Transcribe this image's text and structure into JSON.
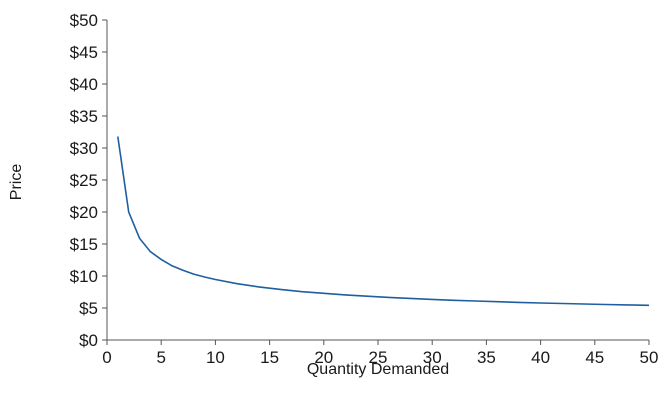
{
  "chart_data": {
    "type": "line",
    "title": "",
    "xlabel": "Quantity Demanded",
    "ylabel": "Price",
    "xlim": [
      0,
      50
    ],
    "ylim": [
      0,
      50
    ],
    "x_ticks": [
      0,
      5,
      10,
      15,
      20,
      25,
      30,
      35,
      40,
      45,
      50
    ],
    "x_tick_labels": [
      "0",
      "5",
      "10",
      "15",
      "20",
      "25",
      "30",
      "35",
      "40",
      "45",
      "50"
    ],
    "y_ticks": [
      0,
      5,
      10,
      15,
      20,
      25,
      30,
      35,
      40,
      45,
      50
    ],
    "y_tick_labels": [
      "$0",
      "$5",
      "$10",
      "$15",
      "$20",
      "$25",
      "$30",
      "$35",
      "$40",
      "$45",
      "$50"
    ],
    "grid": false,
    "legend": "none",
    "series": [
      {
        "color": "#1f5fa0",
        "x": [
          1,
          2,
          3,
          4,
          5,
          6,
          7,
          8,
          9,
          10,
          12,
          14,
          16,
          18,
          20,
          22,
          24,
          26,
          28,
          30,
          32,
          34,
          36,
          38,
          40,
          42,
          44,
          46,
          48,
          50
        ],
        "y": [
          31.8,
          20.0,
          15.9,
          13.8,
          12.6,
          11.6,
          10.9,
          10.3,
          9.85,
          9.45,
          8.8,
          8.3,
          7.9,
          7.55,
          7.3,
          7.05,
          6.85,
          6.65,
          6.5,
          6.35,
          6.2,
          6.1,
          5.98,
          5.88,
          5.78,
          5.7,
          5.62,
          5.55,
          5.48,
          5.42
        ]
      }
    ]
  }
}
